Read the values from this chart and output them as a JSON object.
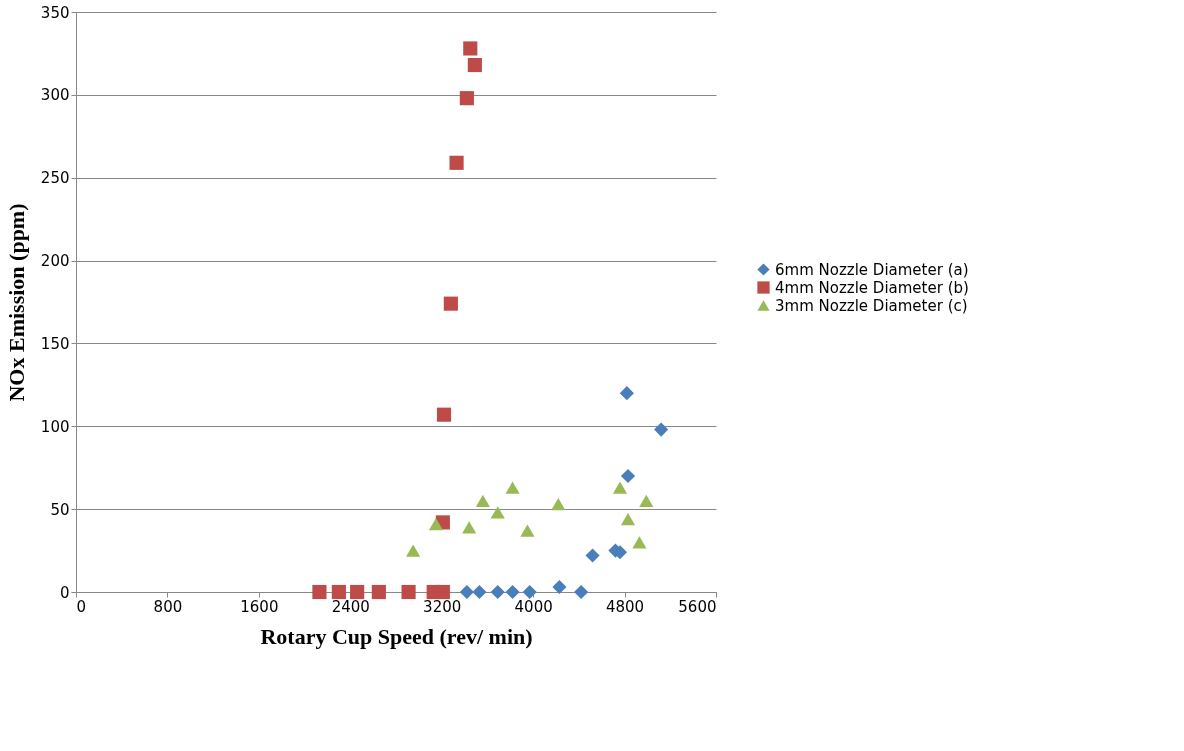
{
  "chart_data": {
    "type": "scatter",
    "xlabel": "Rotary Cup Speed (rev/ min)",
    "ylabel": "NOx Emission (ppm)",
    "xlim": [
      0,
      5600
    ],
    "xticks": [
      0,
      800,
      1600,
      2400,
      3200,
      4000,
      4800,
      5600
    ],
    "ylim": [
      0,
      350
    ],
    "yticks": [
      0,
      50,
      100,
      150,
      200,
      250,
      300,
      350
    ],
    "grid": "y",
    "legend": "right",
    "series": [
      {
        "name": "6mm Nozzle Diameter (a)",
        "color": "#4a7ebb",
        "marker": "diamond",
        "x": [
          3420,
          3530,
          3690,
          3820,
          3970,
          4230,
          4420,
          4520,
          4720,
          4760,
          4830,
          4820,
          5120
        ],
        "values": [
          0,
          0,
          0,
          0,
          0,
          3,
          0,
          22,
          25,
          24,
          70,
          120,
          98
        ]
      },
      {
        "name": "4mm Nozzle Diameter (b)",
        "color": "#be4b48",
        "marker": "square",
        "x": [
          2130,
          2300,
          2460,
          2650,
          2910,
          3130,
          3210,
          3210,
          3220,
          3280,
          3330,
          3420,
          3450,
          3490
        ],
        "values": [
          0,
          0,
          0,
          0,
          0,
          0,
          0,
          42,
          107,
          174,
          259,
          298,
          328,
          318
        ]
      },
      {
        "name": "3mm Nozzle Diameter (c)",
        "color": "#98b954",
        "marker": "triangle",
        "x": [
          2950,
          3150,
          3440,
          3560,
          3690,
          3820,
          3950,
          4220,
          4760,
          4830,
          4930,
          4990
        ],
        "values": [
          25,
          41,
          39,
          55,
          48,
          63,
          37,
          53,
          63,
          44,
          30,
          55
        ]
      }
    ]
  }
}
